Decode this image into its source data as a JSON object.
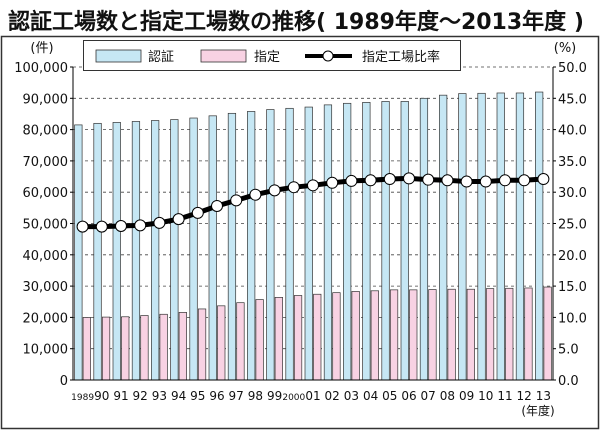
{
  "chart_data": {
    "type": "bar",
    "title": "認証工場数と指定工場数の推移( 1989年度～2013年度 )",
    "ylabel_left": "(件)",
    "ylabel_right": "(%)",
    "xlabel": "(年度)",
    "ylim_left": [
      0,
      100000
    ],
    "ylim_right": [
      0,
      50
    ],
    "yticks_left": [
      "0",
      "10,000",
      "20,000",
      "30,000",
      "40,000",
      "50,000",
      "60,000",
      "70,000",
      "80,000",
      "90,000",
      "100,000"
    ],
    "yticks_right": [
      "0.0",
      "5.0",
      "10.0",
      "15.0",
      "20.0",
      "25.0",
      "30.0",
      "35.0",
      "40.0",
      "45.0",
      "50.0"
    ],
    "grid": true,
    "legend_placement": "top",
    "categories": [
      "1989",
      "90",
      "91",
      "92",
      "93",
      "94",
      "95",
      "96",
      "97",
      "98",
      "99",
      "2000",
      "01",
      "02",
      "03",
      "04",
      "05",
      "06",
      "07",
      "08",
      "09",
      "10",
      "11",
      "12",
      "13"
    ],
    "series": [
      {
        "name": "認証",
        "type": "bar",
        "axis": "left",
        "color": "#c6e7f4",
        "values": [
          81500,
          82000,
          82300,
          82600,
          82900,
          83200,
          83700,
          84400,
          85200,
          85800,
          86400,
          86800,
          87200,
          87900,
          88400,
          88700,
          89000,
          89000,
          90000,
          91000,
          91500,
          91600,
          91700,
          91700,
          92000
        ]
      },
      {
        "name": "指定",
        "type": "bar",
        "axis": "left",
        "color": "#f8d2e3",
        "values": [
          20000,
          20100,
          20200,
          20600,
          21000,
          21600,
          22700,
          23700,
          24700,
          25700,
          26400,
          27000,
          27400,
          27900,
          28300,
          28500,
          28800,
          28800,
          28900,
          29000,
          29000,
          29200,
          29300,
          29400,
          29700
        ]
      },
      {
        "name": "指定工場比率",
        "type": "line",
        "axis": "right",
        "color": "#000000",
        "values": [
          24.5,
          24.5,
          24.6,
          24.7,
          25.1,
          25.7,
          26.7,
          27.8,
          28.7,
          29.6,
          30.3,
          30.8,
          31.1,
          31.5,
          31.8,
          31.9,
          32.1,
          32.2,
          32.0,
          31.9,
          31.7,
          31.7,
          31.9,
          31.9,
          32.1
        ]
      }
    ]
  }
}
